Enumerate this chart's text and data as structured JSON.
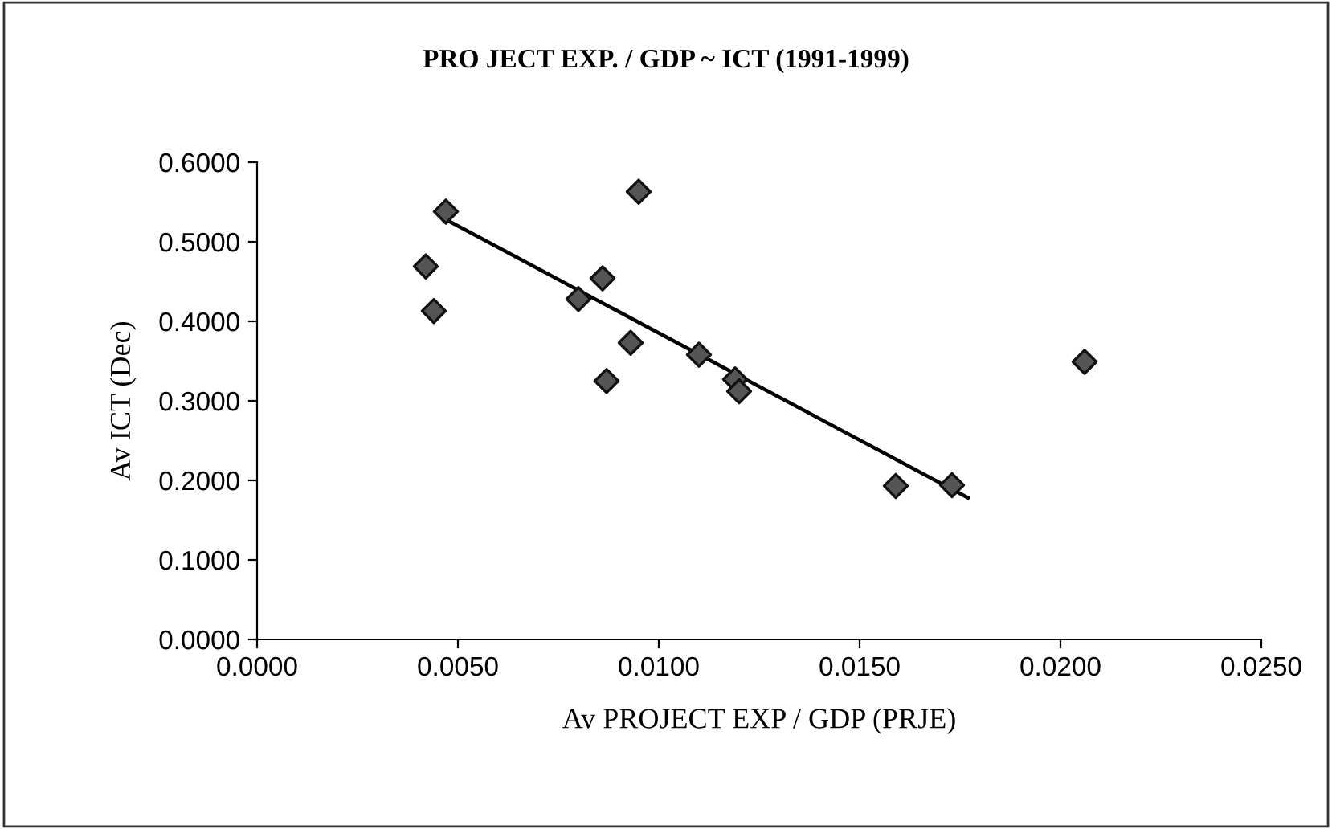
{
  "chart_data": {
    "type": "scatter",
    "title": "PRO JECT EXP. / GDP ~ ICT (1991-1999)",
    "xlabel": "Av PROJECT EXP / GDP (PRJE)",
    "ylabel": "Av ICT (Dec)",
    "series": [
      {
        "color": "#555555",
        "marker": "diamond",
        "x": [
          0.0047,
          0.0042,
          0.0044,
          0.0095,
          0.008,
          0.0086,
          0.0093,
          0.0087,
          0.011,
          0.0119,
          0.012,
          0.0159,
          0.0173,
          0.0206
        ],
        "values": [
          0.538,
          0.469,
          0.413,
          0.563,
          0.428,
          0.454,
          0.373,
          0.325,
          0.358,
          0.327,
          0.312,
          0.193,
          0.194,
          0.349
        ]
      },
      {
        "type": "line",
        "color": "#000000",
        "marker": "none",
        "x": [
          0.0047,
          0.0177
        ],
        "values": [
          0.528,
          0.178
        ]
      }
    ],
    "xlim": [
      0,
      0.025
    ],
    "xticks": [
      {
        "value": 0,
        "label": "0.0000"
      },
      {
        "value": 0.005,
        "label": "0.0050"
      },
      {
        "value": 0.01,
        "label": "0.0100"
      },
      {
        "value": 0.015,
        "label": "0.0150"
      },
      {
        "value": 0.02,
        "label": "0.0200"
      },
      {
        "value": 0.025,
        "label": "0.0250"
      }
    ],
    "ylim": [
      0,
      0.6
    ],
    "yticks": [
      {
        "value": 0,
        "label": "0.0000"
      },
      {
        "value": 0.1,
        "label": "0.1000"
      },
      {
        "value": 0.2,
        "label": "0.2000"
      },
      {
        "value": 0.3,
        "label": "0.3000"
      },
      {
        "value": 0.4,
        "label": "0.4000"
      },
      {
        "value": 0.5,
        "label": "0.5000"
      },
      {
        "value": 0.6,
        "label": "0.6000"
      }
    ],
    "grid": false,
    "legend": false
  }
}
